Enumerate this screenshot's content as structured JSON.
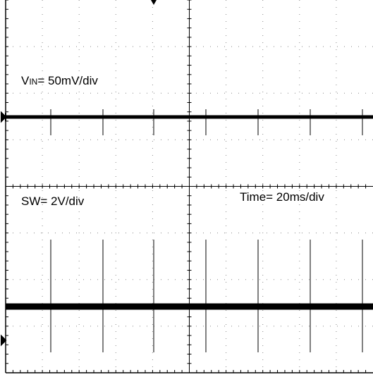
{
  "vin_label": {
    "symbol": "V",
    "subscript": "IN",
    "text": "= 50mV/div"
  },
  "sw_label": "SW= 2V/div",
  "time_label": "Time= 20ms/div"
}
